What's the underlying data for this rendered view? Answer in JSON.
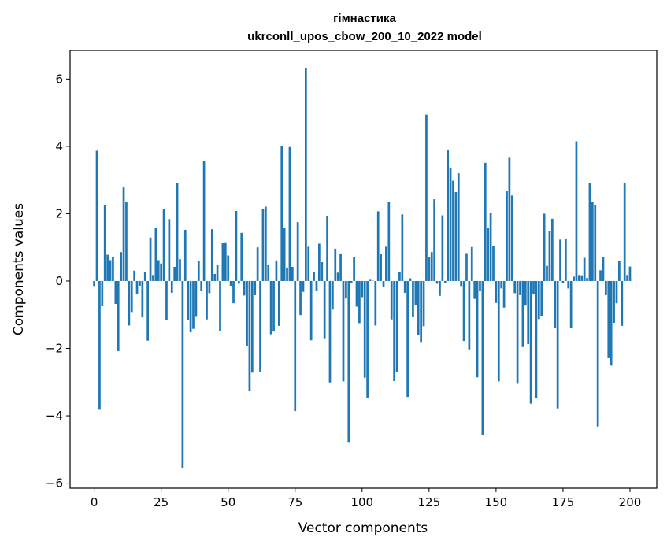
{
  "chart_data": {
    "type": "bar",
    "title": "гімнастика",
    "subtitle": "ukrconll_upos_cbow_200_10_2022 model",
    "xlabel": "Vector components",
    "ylabel": "Components values",
    "xlim": [
      -9,
      210
    ],
    "ylim": [
      -6.15,
      6.85
    ],
    "xticks": [
      0,
      25,
      50,
      75,
      100,
      125,
      150,
      175,
      200
    ],
    "yticks": [
      -6,
      -4,
      -2,
      0,
      2,
      4,
      6
    ],
    "ytick_labels": [
      "−6",
      "−4",
      "−2",
      "0",
      "2",
      "4",
      "6"
    ],
    "grid": false,
    "bar_color": "#1f77b4",
    "values": [
      -0.15,
      3.87,
      -3.82,
      -0.75,
      2.25,
      0.78,
      0.62,
      0.72,
      -0.68,
      -2.08,
      0.86,
      2.78,
      2.35,
      -1.32,
      -0.92,
      0.31,
      -0.38,
      -0.14,
      -1.08,
      0.26,
      -1.77,
      1.29,
      0.18,
      1.57,
      0.62,
      0.52,
      2.15,
      -1.15,
      1.84,
      -0.35,
      0.42,
      2.9,
      0.65,
      -5.55,
      1.52,
      -1.16,
      -1.52,
      -1.42,
      -1.04,
      0.6,
      -0.3,
      3.56,
      -1.14,
      -0.36,
      1.54,
      0.21,
      0.48,
      -1.48,
      1.12,
      1.15,
      0.76,
      -0.14,
      -0.66,
      2.08,
      -0.08,
      1.43,
      -0.43,
      -1.92,
      -3.26,
      -2.72,
      -0.42,
      1.0,
      -2.69,
      2.13,
      2.21,
      0.49,
      -1.58,
      -1.5,
      0.61,
      -1.33,
      4.0,
      1.58,
      0.4,
      3.98,
      0.42,
      -3.86,
      1.75,
      -1.01,
      -0.32,
      6.32,
      1.02,
      -1.76,
      0.28,
      -0.3,
      1.11,
      0.56,
      -1.7,
      1.94,
      -3.01,
      -0.85,
      0.96,
      0.25,
      0.82,
      -2.98,
      -0.52,
      -4.8,
      -0.07,
      0.72,
      -0.76,
      -1.25,
      -0.48,
      -2.87,
      -3.46,
      0.06,
      0.01,
      -1.32,
      2.07,
      0.8,
      -0.18,
      1.02,
      2.35,
      -1.14,
      -2.97,
      -2.7,
      0.28,
      1.98,
      -0.35,
      -3.44,
      0.08,
      -1.06,
      -0.72,
      -1.59,
      -1.81,
      -1.34,
      4.94,
      0.72,
      0.86,
      2.43,
      -0.08,
      -0.44,
      1.95,
      -0.05,
      3.88,
      3.37,
      2.98,
      2.64,
      3.2,
      -0.15,
      -1.78,
      0.83,
      -2.03,
      1.01,
      -0.53,
      -2.86,
      -0.3,
      -4.57,
      3.51,
      1.57,
      2.03,
      1.04,
      -0.65,
      -2.98,
      -0.22,
      -0.79,
      2.68,
      3.66,
      2.54,
      -0.36,
      -3.05,
      -0.42,
      -1.96,
      -0.73,
      -1.87,
      -3.64,
      -0.4,
      -3.47,
      -1.13,
      -1.03,
      2.0,
      0.45,
      1.48,
      1.85,
      -1.38,
      -3.78,
      1.23,
      -0.07,
      1.26,
      -0.22,
      -1.4,
      0.13,
      4.15,
      0.18,
      0.17,
      0.69,
      0.09,
      2.91,
      2.34,
      2.25,
      -4.32,
      0.32,
      0.72,
      -0.42,
      -2.29,
      -2.51,
      -1.24,
      -0.66,
      0.59,
      -1.33,
      2.9,
      0.18,
      0.43
    ]
  }
}
